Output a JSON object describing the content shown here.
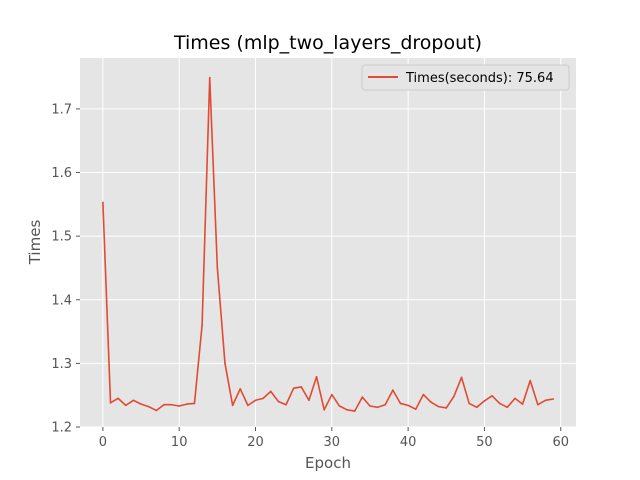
{
  "chart_data": {
    "type": "line",
    "title": "Times (mlp_two_layers_dropout)",
    "xlabel": "Epoch",
    "ylabel": "Times",
    "xlim": [
      -3,
      62
    ],
    "ylim": [
      1.2,
      1.78
    ],
    "xticks": [
      0,
      10,
      20,
      30,
      40,
      50,
      60
    ],
    "yticks": [
      1.2,
      1.3,
      1.4,
      1.5,
      1.6,
      1.7
    ],
    "ytick_labels": [
      "1.2",
      "1.3",
      "1.4",
      "1.5",
      "1.6",
      "1.7"
    ],
    "grid": true,
    "legend_position": "top-right",
    "colors": {
      "background": "#e5e5e5",
      "grid": "#ffffff",
      "line": "#e24a33"
    },
    "series": [
      {
        "name": "Times(seconds): 75.64",
        "x": [
          0,
          1,
          2,
          3,
          4,
          5,
          6,
          7,
          8,
          9,
          10,
          11,
          12,
          13,
          14,
          15,
          16,
          17,
          18,
          19,
          20,
          21,
          22,
          23,
          24,
          25,
          26,
          27,
          28,
          29,
          30,
          31,
          32,
          33,
          34,
          35,
          36,
          37,
          38,
          39,
          40,
          41,
          42,
          43,
          44,
          45,
          46,
          47,
          48,
          49,
          50,
          51,
          52,
          53,
          54,
          55,
          56,
          57,
          58,
          59
        ],
        "values": [
          1.553,
          1.238,
          1.245,
          1.234,
          1.242,
          1.236,
          1.232,
          1.226,
          1.235,
          1.235,
          1.233,
          1.236,
          1.237,
          1.36,
          1.749,
          1.45,
          1.3,
          1.234,
          1.26,
          1.234,
          1.242,
          1.245,
          1.256,
          1.24,
          1.235,
          1.261,
          1.263,
          1.242,
          1.279,
          1.227,
          1.251,
          1.233,
          1.227,
          1.225,
          1.247,
          1.233,
          1.231,
          1.235,
          1.258,
          1.237,
          1.234,
          1.228,
          1.251,
          1.239,
          1.232,
          1.23,
          1.248,
          1.278,
          1.237,
          1.231,
          1.241,
          1.249,
          1.237,
          1.231,
          1.245,
          1.236,
          1.273,
          1.235,
          1.242,
          1.244
        ]
      }
    ]
  }
}
